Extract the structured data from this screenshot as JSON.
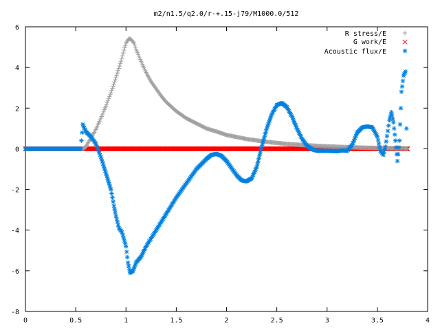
{
  "chart_data": {
    "type": "scatter",
    "title": "m2/n1.5/q2.0/r-+.15-j79/M1000.0/512",
    "xlabel": "",
    "ylabel": "",
    "xlim": [
      0,
      4
    ],
    "ylim": [
      -8,
      6
    ],
    "x_ticks": [
      "0",
      "0.5",
      "1",
      "1.5",
      "2",
      "2.5",
      "3",
      "3.5",
      "4"
    ],
    "y_ticks": [
      "6",
      "4",
      "2",
      "0",
      "-2",
      "-4",
      "-6",
      "-8"
    ],
    "grid": false,
    "legend_position": "top-right",
    "series": [
      {
        "name": "R stress/E",
        "marker": "plus",
        "color": "#a0a0a0",
        "points": [
          [
            0.0,
            0
          ],
          [
            0.3,
            0
          ],
          [
            0.58,
            0
          ],
          [
            0.6,
            0.1
          ],
          [
            0.63,
            0.35
          ],
          [
            0.66,
            0.6
          ],
          [
            0.7,
            0.95
          ],
          [
            0.75,
            1.5
          ],
          [
            0.8,
            2.1
          ],
          [
            0.85,
            2.75
          ],
          [
            0.9,
            3.5
          ],
          [
            0.95,
            4.3
          ],
          [
            0.98,
            4.85
          ],
          [
            1.0,
            5.2
          ],
          [
            1.03,
            5.42
          ],
          [
            1.05,
            5.38
          ],
          [
            1.08,
            5.2
          ],
          [
            1.1,
            4.9
          ],
          [
            1.15,
            4.3
          ],
          [
            1.2,
            3.75
          ],
          [
            1.25,
            3.3
          ],
          [
            1.3,
            2.95
          ],
          [
            1.35,
            2.6
          ],
          [
            1.4,
            2.3
          ],
          [
            1.5,
            1.85
          ],
          [
            1.6,
            1.5
          ],
          [
            1.7,
            1.25
          ],
          [
            1.8,
            1.0
          ],
          [
            1.9,
            0.85
          ],
          [
            2.0,
            0.68
          ],
          [
            2.2,
            0.48
          ],
          [
            2.4,
            0.34
          ],
          [
            2.6,
            0.24
          ],
          [
            2.8,
            0.17
          ],
          [
            3.0,
            0.12
          ],
          [
            3.2,
            0.08
          ],
          [
            3.4,
            0.05
          ],
          [
            3.6,
            0.03
          ],
          [
            3.8,
            0.02
          ]
        ]
      },
      {
        "name": "G work/E",
        "marker": "cross",
        "color": "#ff0000",
        "points": [
          [
            0.0,
            0
          ],
          [
            0.5,
            0
          ],
          [
            1.0,
            0
          ],
          [
            1.5,
            0
          ],
          [
            2.0,
            0
          ],
          [
            2.5,
            0
          ],
          [
            3.0,
            0
          ],
          [
            3.5,
            0
          ],
          [
            3.8,
            0
          ]
        ]
      },
      {
        "name": "Acoustic flux/E",
        "marker": "star",
        "color": "#0080e0",
        "points": [
          [
            0.0,
            0
          ],
          [
            0.3,
            0
          ],
          [
            0.55,
            0
          ],
          [
            0.57,
            1.2
          ],
          [
            0.6,
            0.85
          ],
          [
            0.65,
            0.6
          ],
          [
            0.7,
            0.25
          ],
          [
            0.75,
            -0.4
          ],
          [
            0.8,
            -1.2
          ],
          [
            0.85,
            -2.0
          ],
          [
            0.88,
            -2.8
          ],
          [
            0.9,
            -3.3
          ],
          [
            0.93,
            -3.9
          ],
          [
            0.96,
            -4.1
          ],
          [
            1.0,
            -4.8
          ],
          [
            1.02,
            -5.6
          ],
          [
            1.04,
            -6.1
          ],
          [
            1.07,
            -6.0
          ],
          [
            1.1,
            -5.6
          ],
          [
            1.15,
            -5.3
          ],
          [
            1.2,
            -4.8
          ],
          [
            1.3,
            -4.0
          ],
          [
            1.4,
            -3.2
          ],
          [
            1.5,
            -2.4
          ],
          [
            1.6,
            -1.7
          ],
          [
            1.7,
            -1.0
          ],
          [
            1.8,
            -0.5
          ],
          [
            1.85,
            -0.3
          ],
          [
            1.9,
            -0.25
          ],
          [
            1.95,
            -0.35
          ],
          [
            2.0,
            -0.6
          ],
          [
            2.05,
            -0.95
          ],
          [
            2.1,
            -1.3
          ],
          [
            2.15,
            -1.55
          ],
          [
            2.2,
            -1.6
          ],
          [
            2.25,
            -1.45
          ],
          [
            2.3,
            -0.9
          ],
          [
            2.35,
            0.1
          ],
          [
            2.4,
            1.0
          ],
          [
            2.45,
            1.7
          ],
          [
            2.5,
            2.15
          ],
          [
            2.55,
            2.25
          ],
          [
            2.6,
            2.05
          ],
          [
            2.65,
            1.6
          ],
          [
            2.7,
            1.0
          ],
          [
            2.75,
            0.5
          ],
          [
            2.8,
            0.15
          ],
          [
            2.85,
            -0.02
          ],
          [
            2.9,
            -0.1
          ],
          [
            3.0,
            -0.1
          ],
          [
            3.1,
            -0.12
          ],
          [
            3.15,
            -0.08
          ],
          [
            3.2,
            -0.1
          ],
          [
            3.25,
            0.2
          ],
          [
            3.3,
            0.8
          ],
          [
            3.35,
            1.05
          ],
          [
            3.4,
            1.1
          ],
          [
            3.45,
            1.05
          ],
          [
            3.5,
            0.6
          ],
          [
            3.53,
            -0.1
          ],
          [
            3.56,
            -0.3
          ],
          [
            3.58,
            0.1
          ],
          [
            3.62,
            1.4
          ],
          [
            3.64,
            1.8
          ],
          [
            3.66,
            1.3
          ],
          [
            3.68,
            0.4
          ],
          [
            3.7,
            -0.6
          ],
          [
            3.72,
            0.4
          ],
          [
            3.74,
            2.8
          ],
          [
            3.76,
            3.6
          ],
          [
            3.78,
            3.8
          ],
          [
            3.79,
            1.0
          ]
        ]
      }
    ]
  }
}
